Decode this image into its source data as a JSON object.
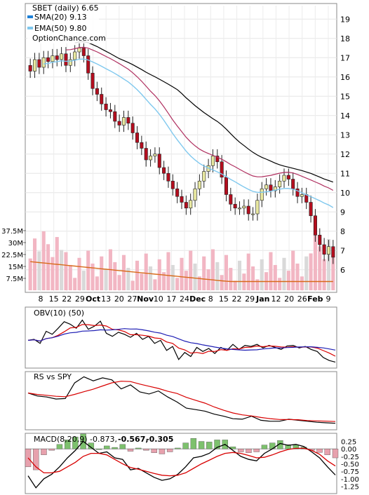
{
  "chart_data": [
    {
      "type": "candlestick",
      "legend": [
        {
          "text": "SBET (daily) 6.65",
          "color": "#000000"
        },
        {
          "text": "SMA(20) 9.13",
          "color": "#1c7fd6"
        },
        {
          "text": "EMA(50) 9.80",
          "color": "#7fc8ee"
        },
        {
          "text": "OptionChance.com",
          "color": null
        }
      ],
      "price_ticks": [
        "19",
        "18",
        "17",
        "16",
        "15",
        "14",
        "13",
        "12",
        "11",
        "10",
        "9",
        "8",
        "7",
        "6"
      ],
      "price_range": [
        5.3,
        19.7
      ],
      "volume_ticks": [
        "37.5M",
        "30M",
        "22.5M",
        "15M",
        "7.5M"
      ],
      "volume_range": [
        0,
        45
      ],
      "x_labels": [
        "8",
        "15",
        "22",
        "29",
        "Oct",
        "13",
        "20",
        "27",
        "Nov",
        "10",
        "17",
        "24",
        "Dec",
        "8",
        "15",
        "22",
        "29",
        "Jan",
        "12",
        "20",
        "26",
        "Feb",
        "9"
      ],
      "close_start": 16.6,
      "close": [
        16.3,
        16.9,
        16.5,
        17.0,
        16.8,
        17.1,
        16.9,
        17.2,
        16.6,
        16.9,
        17.3,
        17.5,
        17.1,
        16.2,
        15.4,
        15.1,
        14.6,
        14.3,
        14.2,
        13.7,
        13.5,
        13.9,
        13.6,
        13.1,
        12.6,
        12.3,
        11.7,
        11.9,
        12.0,
        11.3,
        11.0,
        10.6,
        10.2,
        9.8,
        9.5,
        9.2,
        9.6,
        10.2,
        10.6,
        11.1,
        11.4,
        11.9,
        11.6,
        10.8,
        9.9,
        9.4,
        9.2,
        9.2,
        9.3,
        8.9,
        8.9,
        9.6,
        10.2,
        10.4,
        10.1,
        10.3,
        10.6,
        10.9,
        10.7,
        10.2,
        9.8,
        9.9,
        9.5,
        8.8,
        7.8,
        7.3,
        6.8,
        7.2,
        6.65
      ],
      "sma20": 9.13,
      "ema50": 9.8,
      "volume_level": 5.5
    },
    {
      "type": "line",
      "title": "OBV(10) (50)",
      "series": [
        {
          "name": "OBV",
          "values": [
            0.48,
            0.5,
            0.42,
            0.66,
            0.6,
            0.72,
            0.85,
            0.8,
            0.72,
            0.88,
            0.7,
            0.76,
            0.86,
            0.62,
            0.56,
            0.64,
            0.6,
            0.54,
            0.62,
            0.5,
            0.56,
            0.42,
            0.48,
            0.28,
            0.36,
            0.1,
            0.24,
            0.16,
            0.34,
            0.26,
            0.32,
            0.22,
            0.34,
            0.28,
            0.4,
            0.3,
            0.38,
            0.36,
            0.4,
            0.33,
            0.38,
            0.34,
            0.3,
            0.37,
            0.38,
            0.33,
            0.36,
            0.3,
            0.26,
            0.14,
            0.08,
            0.05
          ]
        }
      ]
    },
    {
      "type": "line",
      "title": "RS vs SPY",
      "series": [
        {
          "name": "RS",
          "values": [
            0.66,
            0.6,
            0.58,
            0.54,
            0.55,
            0.86,
            0.98,
            0.9,
            0.96,
            0.92,
            0.74,
            0.82,
            0.68,
            0.64,
            0.7,
            0.58,
            0.48,
            0.36,
            0.33,
            0.3,
            0.24,
            0.2,
            0.15,
            0.14,
            0.2,
            0.12,
            0.1,
            0.1,
            0.14,
            0.12,
            0.1,
            0.08,
            0.07,
            0.06
          ]
        }
      ]
    },
    {
      "type": "line",
      "title": "MACD(8,20,9) -0.873,",
      "values_text": [
        "-0.567,",
        "-0.305"
      ],
      "y_ticks": [
        "0.25",
        "0.00",
        "-0.25",
        "-0.50",
        "-0.75",
        "-1.00",
        "-1.25"
      ],
      "y_range": [
        -1.4,
        0.45
      ],
      "series": [
        {
          "name": "MACD",
          "values": [
            -0.9,
            -1.3,
            -1.0,
            -0.85,
            -0.6,
            -0.3,
            -0.05,
            0.25,
            0.05,
            -0.15,
            -0.1,
            -0.3,
            -0.35,
            -0.7,
            -0.65,
            -0.8,
            -0.95,
            -1.05,
            -1.0,
            -0.85,
            -0.6,
            -0.3,
            -0.25,
            -0.15,
            0.05,
            0.15,
            -0.05,
            -0.25,
            -0.35,
            -0.4,
            -0.15,
            0.0,
            0.18,
            0.12,
            0.15,
            0.08,
            -0.1,
            -0.3,
            -0.6,
            -0.87
          ]
        },
        {
          "name": "Signal",
          "values": [
            -0.3,
            -0.6,
            -0.8,
            -0.8,
            -0.75,
            -0.6,
            -0.45,
            -0.25,
            -0.15,
            -0.15,
            -0.2,
            -0.35,
            -0.5,
            -0.62,
            -0.68,
            -0.75,
            -0.82,
            -0.88,
            -0.9,
            -0.88,
            -0.8,
            -0.65,
            -0.5,
            -0.38,
            -0.25,
            -0.15,
            -0.12,
            -0.15,
            -0.22,
            -0.3,
            -0.28,
            -0.2,
            -0.1,
            -0.02,
            0.02,
            0.02,
            -0.05,
            -0.18,
            -0.4,
            -0.57
          ]
        }
      ]
    }
  ],
  "colors": {
    "up": "#e8e8a0",
    "down": "#b40d1e",
    "sma": "#1c7fd6",
    "ema": "#7fc8ee",
    "black": "#000000",
    "red": "#d80000",
    "blue": "#1e1eb4",
    "volume": "#f2b6c3",
    "vol_line": "#d86a1a",
    "macd_pos": "#7dc16d",
    "macd_neg": "#e7a1ad"
  }
}
